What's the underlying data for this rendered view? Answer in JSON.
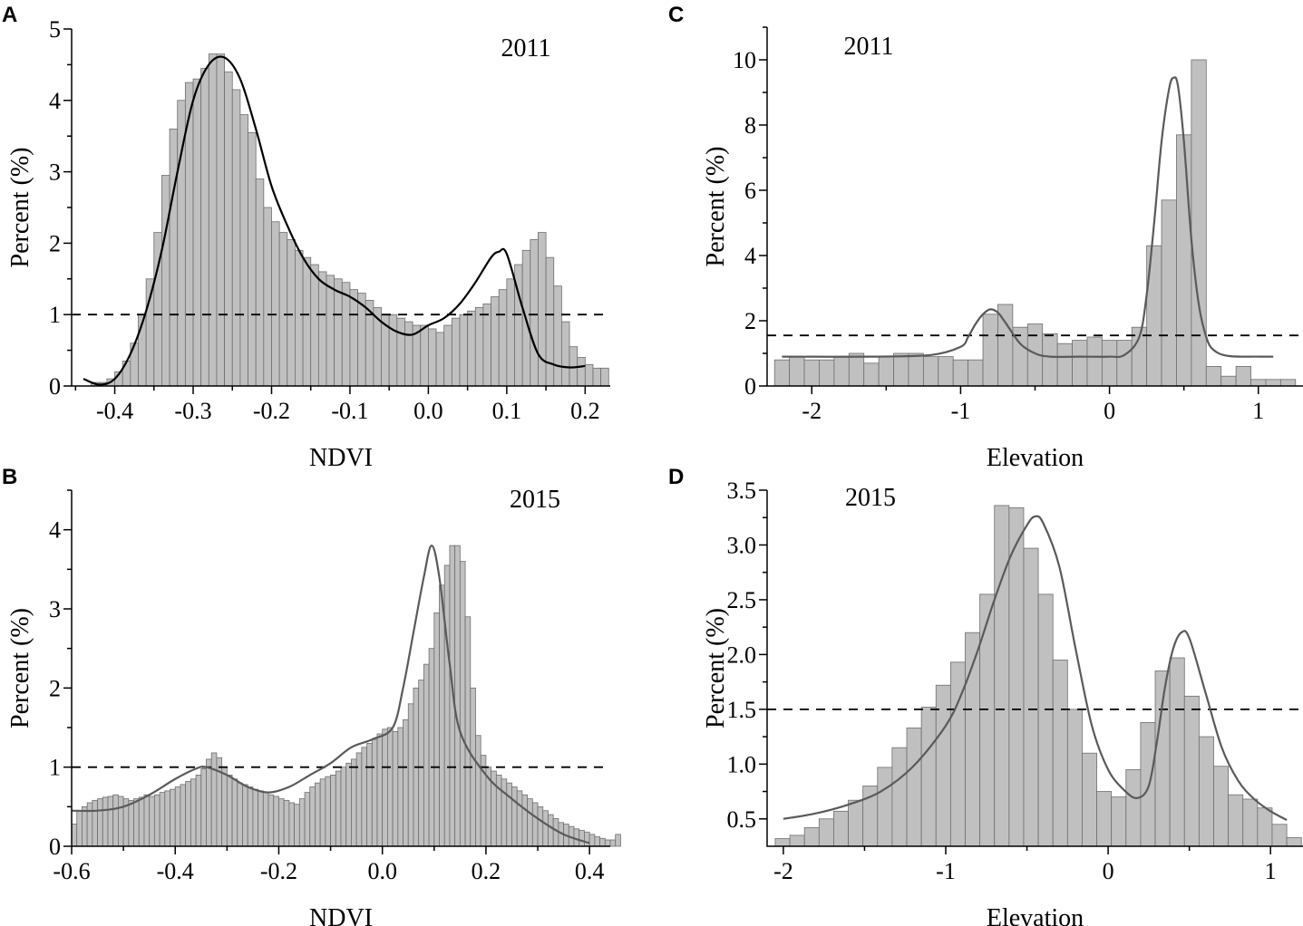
{
  "chart_data": [
    {
      "panel": "A",
      "type": "bar",
      "title": "2011",
      "xlabel": "NDVI",
      "ylabel": "Percent (%)",
      "xlim": [
        -0.455,
        0.232
      ],
      "ylim": [
        0,
        5
      ],
      "xticks": [
        -0.4,
        -0.3,
        -0.2,
        -0.1,
        0.0,
        0.1,
        0.2
      ],
      "xtick_labels": [
        "-0.4",
        "-0.3",
        "-0.2",
        "-0.1",
        "0.0",
        "0.1",
        "0.2"
      ],
      "yticks": [
        0,
        1,
        2,
        3,
        4,
        5
      ],
      "ytick_labels": [
        "0",
        "1",
        "2",
        "3",
        "4",
        "5"
      ],
      "bin_start": -0.43,
      "bin_width": 0.01,
      "values": [
        0.05,
        0.05,
        0.1,
        0.2,
        0.35,
        0.6,
        1.0,
        1.5,
        2.15,
        2.95,
        3.6,
        4.0,
        4.25,
        4.3,
        4.45,
        4.65,
        4.65,
        4.4,
        4.15,
        3.8,
        3.55,
        2.9,
        2.5,
        2.3,
        2.15,
        2.05,
        1.9,
        1.8,
        1.7,
        1.6,
        1.55,
        1.5,
        1.45,
        1.35,
        1.3,
        1.2,
        1.1,
        1.0,
        1.0,
        0.95,
        0.9,
        0.85,
        0.85,
        0.8,
        0.75,
        0.85,
        0.95,
        1.0,
        1.05,
        1.1,
        1.15,
        1.25,
        1.35,
        1.5,
        1.7,
        1.9,
        2.05,
        2.15,
        1.8,
        1.4,
        0.9,
        0.55,
        0.4,
        0.3,
        0.25,
        0.25
      ],
      "fit_x": [
        -0.44,
        -0.42,
        -0.4,
        -0.38,
        -0.36,
        -0.34,
        -0.32,
        -0.3,
        -0.28,
        -0.26,
        -0.24,
        -0.22,
        -0.2,
        -0.18,
        -0.16,
        -0.14,
        -0.12,
        -0.1,
        -0.08,
        -0.06,
        -0.04,
        -0.02,
        0.0,
        0.02,
        0.04,
        0.06,
        0.08,
        0.09,
        0.1,
        0.12,
        0.14,
        0.16,
        0.18,
        0.2
      ],
      "fit_y": [
        0.1,
        0.02,
        0.1,
        0.45,
        1.05,
        1.9,
        3.0,
        4.0,
        4.5,
        4.6,
        4.3,
        3.6,
        2.8,
        2.25,
        1.8,
        1.5,
        1.35,
        1.25,
        1.1,
        0.9,
        0.76,
        0.72,
        0.85,
        0.95,
        1.15,
        1.45,
        1.8,
        1.88,
        1.85,
        1.1,
        0.45,
        0.3,
        0.26,
        0.28
      ],
      "fit_color": "#000000",
      "ref_line": 1
    },
    {
      "panel": "B",
      "type": "bar",
      "title": "2015",
      "xlabel": "NDVI",
      "ylabel": "Percent (%)",
      "xlim": [
        -0.6,
        0.44
      ],
      "ylim": [
        0,
        4.5
      ],
      "xticks": [
        -0.6,
        -0.4,
        -0.2,
        0.0,
        0.2,
        0.4
      ],
      "xtick_labels": [
        "-0.6",
        "-0.4",
        "-0.2",
        "0.0",
        "0.2",
        "0.4"
      ],
      "yticks": [
        0,
        1,
        2,
        3,
        4
      ],
      "ytick_labels": [
        "0",
        "1",
        "2",
        "3",
        "4"
      ],
      "bin_start": -0.6,
      "bin_width": 0.01,
      "values": [
        0.28,
        0.45,
        0.5,
        0.55,
        0.58,
        0.6,
        0.62,
        0.63,
        0.65,
        0.63,
        0.6,
        0.58,
        0.6,
        0.62,
        0.65,
        0.63,
        0.65,
        0.68,
        0.7,
        0.72,
        0.75,
        0.78,
        0.82,
        0.85,
        0.9,
        0.98,
        1.1,
        1.18,
        1.12,
        1.0,
        0.9,
        0.85,
        0.8,
        0.78,
        0.75,
        0.72,
        0.7,
        0.68,
        0.65,
        0.63,
        0.6,
        0.58,
        0.55,
        0.53,
        0.6,
        0.68,
        0.75,
        0.8,
        0.85,
        0.88,
        0.9,
        0.95,
        1.0,
        1.05,
        1.1,
        1.18,
        1.25,
        1.3,
        1.35,
        1.42,
        1.48,
        1.5,
        1.45,
        1.5,
        1.6,
        1.8,
        2.0,
        2.1,
        2.3,
        2.5,
        2.95,
        3.3,
        3.55,
        3.8,
        3.8,
        3.6,
        2.9,
        2.0,
        1.4,
        1.15,
        1.0,
        0.95,
        0.9,
        0.85,
        0.8,
        0.75,
        0.7,
        0.65,
        0.6,
        0.55,
        0.5,
        0.45,
        0.4,
        0.35,
        0.3,
        0.28,
        0.25,
        0.22,
        0.2,
        0.18,
        0.15,
        0.12,
        0.1,
        0.08,
        0.08,
        0.15
      ],
      "fit_x": [
        -0.6,
        -0.55,
        -0.5,
        -0.45,
        -0.4,
        -0.36,
        -0.34,
        -0.3,
        -0.26,
        -0.22,
        -0.18,
        -0.14,
        -0.1,
        -0.06,
        -0.02,
        0.02,
        0.04,
        0.06,
        0.08,
        0.095,
        0.11,
        0.13,
        0.15,
        0.2,
        0.25,
        0.3,
        0.35,
        0.4
      ],
      "fit_y": [
        0.45,
        0.45,
        0.5,
        0.65,
        0.85,
        0.98,
        1.0,
        0.9,
        0.75,
        0.68,
        0.75,
        0.9,
        1.05,
        1.25,
        1.35,
        1.5,
        2.0,
        2.7,
        3.4,
        3.8,
        3.4,
        2.3,
        1.45,
        0.9,
        0.6,
        0.35,
        0.15,
        0.04
      ],
      "fit_color": "#5a5a5a",
      "ref_line": 1
    },
    {
      "panel": "C",
      "type": "bar",
      "title": "2011",
      "xlabel": "Elevation",
      "ylabel": "Percent (%)",
      "xlim": [
        -2.3,
        1.3
      ],
      "ylim": [
        0,
        11
      ],
      "xticks": [
        -2,
        -1,
        0,
        1
      ],
      "xtick_labels": [
        "-2",
        "-1",
        "0",
        "1"
      ],
      "yticks": [
        0,
        2,
        4,
        6,
        8,
        10
      ],
      "ytick_labels": [
        "0",
        "2",
        "4",
        "6",
        "8",
        "10"
      ],
      "bin_start": -2.25,
      "bin_width": 0.1,
      "values": [
        0.8,
        0.9,
        0.8,
        0.8,
        0.9,
        1.0,
        0.7,
        0.9,
        1.0,
        1.0,
        0.9,
        0.9,
        0.8,
        0.8,
        2.2,
        2.5,
        1.8,
        1.9,
        1.6,
        1.3,
        1.4,
        1.5,
        1.4,
        1.4,
        1.8,
        4.3,
        5.7,
        7.7,
        10.0,
        0.6,
        0.3,
        0.6,
        0.2,
        0.2,
        0.2
      ],
      "fit_x": [
        -2.2,
        -1.6,
        -1.2,
        -1.0,
        -0.95,
        -0.9,
        -0.85,
        -0.8,
        -0.75,
        -0.7,
        -0.6,
        -0.5,
        -0.4,
        -0.2,
        0.0,
        0.1,
        0.2,
        0.25,
        0.3,
        0.35,
        0.4,
        0.43,
        0.46,
        0.5,
        0.55,
        0.6,
        0.65,
        0.7,
        0.8,
        1.0,
        1.1
      ],
      "fit_y": [
        0.9,
        0.9,
        0.95,
        1.2,
        1.5,
        1.9,
        2.2,
        2.35,
        2.25,
        1.95,
        1.3,
        1.0,
        0.9,
        0.9,
        0.9,
        0.95,
        1.5,
        2.8,
        5.0,
        7.5,
        9.1,
        9.45,
        9.2,
        7.5,
        4.5,
        2.5,
        1.5,
        1.1,
        0.92,
        0.9,
        0.9
      ],
      "fit_color": "#5a5a5a",
      "ref_line": 1.55
    },
    {
      "panel": "D",
      "type": "bar",
      "title": "2015",
      "xlabel": "Elevation",
      "ylabel": "Percent (%)",
      "xlim": [
        -2.1,
        1.2
      ],
      "ylim": [
        0.25,
        3.5
      ],
      "xticks": [
        -2,
        -1,
        0,
        1
      ],
      "xtick_labels": [
        "-2",
        "-1",
        "0",
        "1"
      ],
      "yticks": [
        0.5,
        1.0,
        1.5,
        2.0,
        2.5,
        3.0,
        3.5
      ],
      "ytick_labels": [
        "0.5",
        "1.0",
        "1.5",
        "2.0",
        "2.5",
        "3.0",
        "3.5"
      ],
      "bin_start": -2.05,
      "bin_width": 0.09,
      "values": [
        0.32,
        0.35,
        0.42,
        0.5,
        0.57,
        0.67,
        0.8,
        0.97,
        1.15,
        1.33,
        1.52,
        1.72,
        1.93,
        2.2,
        2.55,
        3.36,
        3.34,
        2.97,
        2.55,
        1.95,
        1.5,
        1.1,
        0.75,
        0.7,
        0.95,
        1.38,
        1.85,
        1.97,
        1.62,
        1.25,
        0.98,
        0.72,
        0.68,
        0.6,
        0.45,
        0.33
      ],
      "fit_x": [
        -2.0,
        -1.8,
        -1.6,
        -1.4,
        -1.2,
        -1.0,
        -0.9,
        -0.8,
        -0.7,
        -0.6,
        -0.5,
        -0.45,
        -0.4,
        -0.3,
        -0.2,
        -0.1,
        0.0,
        0.1,
        0.18,
        0.25,
        0.3,
        0.35,
        0.4,
        0.45,
        0.5,
        0.6,
        0.7,
        0.8,
        0.9,
        1.0,
        1.1
      ],
      "fit_y": [
        0.5,
        0.55,
        0.63,
        0.75,
        0.98,
        1.35,
        1.65,
        2.05,
        2.5,
        2.9,
        3.18,
        3.26,
        3.2,
        2.8,
        2.05,
        1.35,
        0.95,
        0.76,
        0.69,
        0.8,
        1.2,
        1.7,
        2.05,
        2.2,
        2.15,
        1.65,
        1.15,
        0.85,
        0.68,
        0.57,
        0.49
      ],
      "fit_color": "#5a5a5a",
      "ref_line": 1.5
    }
  ]
}
